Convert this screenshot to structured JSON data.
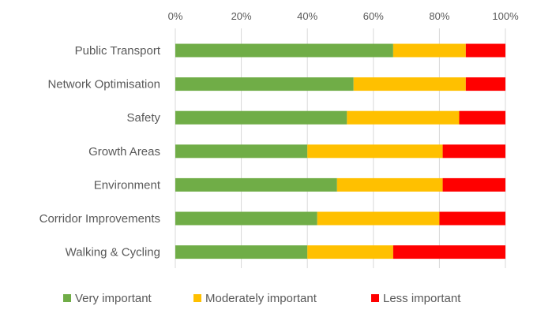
{
  "chart_data": {
    "type": "bar",
    "orientation": "horizontal",
    "stacked": "percent",
    "categories": [
      "Public Transport",
      "Network Optimisation",
      "Safety",
      "Growth Areas",
      "Environment",
      "Corridor Improvements",
      "Walking & Cycling"
    ],
    "series": [
      {
        "name": "Very important",
        "color": "#70AD47",
        "values": [
          66,
          54,
          52,
          40,
          49,
          43,
          40
        ]
      },
      {
        "name": "Moderately important",
        "color": "#FFC000",
        "values": [
          22,
          34,
          34,
          41,
          32,
          37,
          26
        ]
      },
      {
        "name": "Less important",
        "color": "#FF0000",
        "values": [
          12,
          12,
          14,
          19,
          19,
          20,
          34
        ]
      }
    ],
    "xticks": [
      "0%",
      "20%",
      "40%",
      "60%",
      "80%",
      "100%"
    ],
    "xlim": [
      0,
      100
    ],
    "xaxis_position": "top",
    "grid": true,
    "legend": "bottom"
  }
}
